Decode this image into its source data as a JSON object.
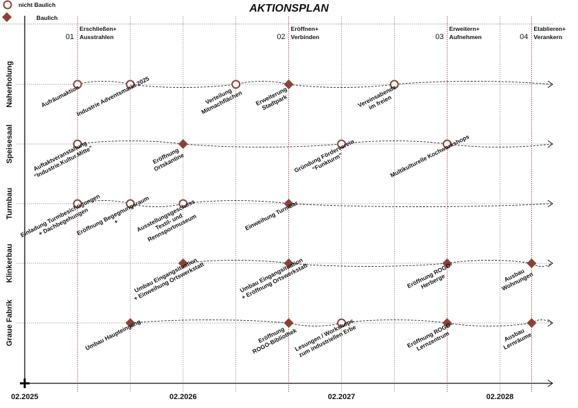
{
  "title": "AKTIONSPLAN",
  "legend": [
    {
      "type": "circle",
      "label": "nicht Baulich"
    },
    {
      "type": "diamond",
      "label": "Baulich"
    }
  ],
  "colors": {
    "accent": "#8b4234",
    "grid": "#888888",
    "axis": "#333333"
  },
  "time_axis": {
    "unit": "months since 02.2025",
    "ticks": [
      {
        "month": 0,
        "label": "02.2025"
      },
      {
        "month": 12,
        "label": "02.2026"
      },
      {
        "month": 24,
        "label": "02.2027"
      },
      {
        "month": 36,
        "label": "02.2028"
      }
    ],
    "grid_every_months": 4,
    "max_month": 40
  },
  "phases": [
    {
      "month": 4,
      "num": "01",
      "lines": [
        "Erschließen+",
        "Ausstrahlen"
      ]
    },
    {
      "month": 20,
      "num": "02",
      "lines": [
        "Eröffnen+",
        "Verbinden"
      ]
    },
    {
      "month": 32,
      "num": "03",
      "lines": [
        "Erweitern+",
        "Aufnehmen"
      ]
    },
    {
      "month": 38.4,
      "num": "04",
      "lines": [
        "Etablieren+",
        "Verankern"
      ]
    }
  ],
  "rows": [
    {
      "name": "Naherholung",
      "events": [
        {
          "month": 4,
          "type": "circle",
          "lines": [
            "Aufräumaktion"
          ]
        },
        {
          "month": 8,
          "type": "circle",
          "lines": [
            "Industrie Adventsmarkt 2025"
          ]
        },
        {
          "month": 16,
          "type": "circle",
          "lines": [
            "Verteilung",
            "Mitmachflächen"
          ]
        },
        {
          "month": 20,
          "type": "diamond",
          "lines": [
            "Erweiterung",
            "Stadtpark"
          ]
        },
        {
          "month": 28,
          "type": "circle",
          "lines": [
            "Vereinsabende",
            "im freien"
          ]
        }
      ]
    },
    {
      "name": "Speisesaal",
      "events": [
        {
          "month": 4,
          "type": "circle",
          "lines": [
            "Auftaktveranstaltung",
            "“Industrie.Kultur.Mitte”"
          ]
        },
        {
          "month": 12,
          "type": "diamond",
          "lines": [
            "Eröffnung",
            "Ortskantine"
          ]
        },
        {
          "month": 24,
          "type": "circle",
          "lines": [
            "Gründung Förderverein",
            "“Funkturm”"
          ]
        },
        {
          "month": 32,
          "type": "circle",
          "lines": [
            "Multikulturelle Kochworkshops"
          ]
        }
      ]
    },
    {
      "name": "Turmbau",
      "events": [
        {
          "month": 4,
          "type": "circle",
          "lines": [
            "Einladung Turmbesichtigungen",
            "+ Dachbegehungen"
          ]
        },
        {
          "month": 8,
          "type": "circle",
          "lines": [
            "Eröffnung Begegnungsraum",
            "+"
          ]
        },
        {
          "month": 12,
          "type": "circle",
          "lines": [
            "Ausstellungsgeschoss",
            "Textil- und",
            "Rennsportmuseum"
          ]
        },
        {
          "month": 20,
          "type": "diamond",
          "lines": [
            "Einweihung Turmbar"
          ]
        }
      ]
    },
    {
      "name": "Klinkerbau",
      "events": [
        {
          "month": 12,
          "type": "diamond",
          "lines": [
            "Umbau Eingangsituation",
            "+ Einweihung Ortswerkstatt"
          ]
        },
        {
          "month": 20,
          "type": "diamond",
          "lines": [
            "Umbau Eingangsituation",
            "+ Eröffnung Ortswerkstatt"
          ]
        },
        {
          "month": 32,
          "type": "diamond",
          "lines": [
            "Eröffnung ROGO-",
            "Herberge"
          ]
        },
        {
          "month": 38.4,
          "type": "diamond",
          "lines": [
            "Ausbau",
            "Wohnungen"
          ]
        }
      ]
    },
    {
      "name": "Graue Fabrik",
      "events": [
        {
          "month": 8,
          "type": "diamond",
          "lines": [
            "Umbau Haupteingang"
          ]
        },
        {
          "month": 20,
          "type": "diamond",
          "lines": [
            "Eröffnung",
            "ROGO-Bibliothek"
          ]
        },
        {
          "month": 24,
          "type": "circle",
          "lines": [
            "Lesungen / Workshops",
            "zum industriellen Erbe"
          ]
        },
        {
          "month": 32,
          "type": "diamond",
          "lines": [
            "Eröffnung ROGO-",
            "Lernzentrum"
          ]
        },
        {
          "month": 38.4,
          "type": "diamond",
          "lines": [
            "Ausbau",
            "Lernräume"
          ]
        }
      ]
    }
  ]
}
